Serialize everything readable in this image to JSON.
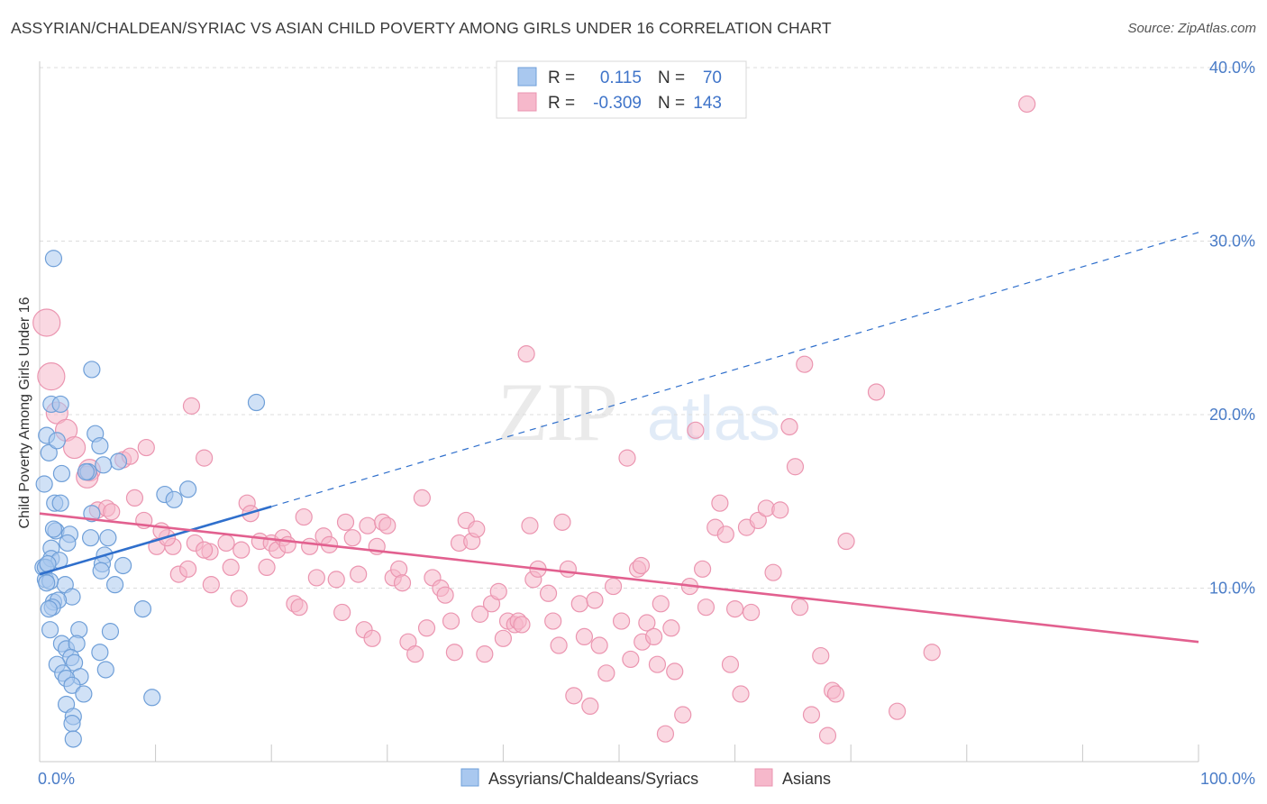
{
  "title": "ASSYRIAN/CHALDEAN/SYRIAC VS ASIAN CHILD POVERTY AMONG GIRLS UNDER 16 CORRELATION CHART",
  "source": "Source: ZipAtlas.com",
  "colors": {
    "blue_fill": "#a9c8ef",
    "blue_stroke": "#6f9fd8",
    "blue_line": "#2f6fcc",
    "pink_fill": "#f6b8cb",
    "pink_stroke": "#eb95b0",
    "pink_line": "#e2608f",
    "tick_text": "#4a7cc7",
    "grid": "#dcdcdc"
  },
  "chart_data": {
    "type": "scatter",
    "ylabel": "Child Poverty Among Girls Under 16",
    "xlim": [
      0,
      100
    ],
    "ylim": [
      0,
      40
    ],
    "x_ticks": [
      "0.0%",
      "100.0%"
    ],
    "y_ticks": [
      {
        "value": 10,
        "label": "10.0%"
      },
      {
        "value": 20,
        "label": "20.0%"
      },
      {
        "value": 30,
        "label": "30.0%"
      },
      {
        "value": 40,
        "label": "40.0%"
      }
    ],
    "grid": "horizontal dashed",
    "legend": {
      "position": "top-center",
      "rows": [
        {
          "r_label": "R =",
          "r_value": "0.115",
          "n_label": "N =",
          "n_value": "70"
        },
        {
          "r_label": "R =",
          "r_value": "-0.309",
          "n_label": "N =",
          "n_value": "143"
        }
      ]
    },
    "bottom_legend": [
      "Assyrians/Chaldeans/Syriacs",
      "Asians"
    ],
    "series": [
      {
        "name": "Assyrians/Chaldeans/Syriacs",
        "trend": {
          "x0": 0,
          "y0": 10.8,
          "x1": 20,
          "y1": 14.7,
          "dash_x1": 100,
          "dash_y1": 30.5
        },
        "points": [
          [
            0.3,
            11.2
          ],
          [
            0.5,
            10.5
          ],
          [
            0.4,
            16.0
          ],
          [
            0.6,
            18.8
          ],
          [
            0.8,
            17.8
          ],
          [
            1.2,
            29.0
          ],
          [
            1.0,
            20.6
          ],
          [
            1.8,
            20.6
          ],
          [
            4.5,
            22.6
          ],
          [
            18.7,
            20.7
          ],
          [
            4.8,
            18.9
          ],
          [
            1.5,
            18.5
          ],
          [
            5.2,
            18.2
          ],
          [
            6.8,
            17.3
          ],
          [
            4.2,
            16.7
          ],
          [
            1.9,
            16.6
          ],
          [
            5.5,
            17.1
          ],
          [
            10.8,
            15.4
          ],
          [
            11.6,
            15.1
          ],
          [
            12.8,
            15.7
          ],
          [
            1.3,
            14.9
          ],
          [
            1.8,
            14.9
          ],
          [
            4.5,
            14.3
          ],
          [
            1.4,
            13.3
          ],
          [
            1.2,
            13.4
          ],
          [
            2.6,
            13.1
          ],
          [
            4.4,
            12.9
          ],
          [
            2.4,
            12.6
          ],
          [
            1.0,
            12.3
          ],
          [
            5.9,
            12.9
          ],
          [
            5.6,
            11.9
          ],
          [
            1.0,
            11.7
          ],
          [
            1.7,
            11.6
          ],
          [
            0.5,
            11.2
          ],
          [
            0.7,
            11.4
          ],
          [
            5.4,
            11.4
          ],
          [
            7.2,
            11.3
          ],
          [
            5.3,
            11.0
          ],
          [
            2.2,
            10.2
          ],
          [
            0.9,
            10.4
          ],
          [
            6.5,
            10.2
          ],
          [
            0.6,
            10.3
          ],
          [
            2.8,
            9.5
          ],
          [
            1.2,
            9.2
          ],
          [
            1.6,
            9.3
          ],
          [
            1.1,
            8.9
          ],
          [
            0.8,
            8.8
          ],
          [
            8.9,
            8.8
          ],
          [
            0.9,
            7.6
          ],
          [
            3.4,
            7.6
          ],
          [
            6.1,
            7.5
          ],
          [
            1.9,
            6.8
          ],
          [
            2.3,
            6.5
          ],
          [
            3.2,
            6.8
          ],
          [
            2.7,
            6.0
          ],
          [
            5.2,
            6.3
          ],
          [
            1.5,
            5.6
          ],
          [
            3.0,
            5.7
          ],
          [
            2.0,
            5.1
          ],
          [
            3.5,
            4.9
          ],
          [
            5.7,
            5.3
          ],
          [
            2.3,
            4.8
          ],
          [
            2.8,
            4.4
          ],
          [
            3.8,
            3.9
          ],
          [
            9.7,
            3.7
          ],
          [
            2.3,
            3.3
          ],
          [
            2.9,
            2.6
          ],
          [
            2.8,
            2.2
          ],
          [
            2.9,
            1.3
          ],
          [
            4.0,
            16.7
          ]
        ]
      },
      {
        "name": "Asians",
        "trend": {
          "x0": 0,
          "y0": 14.3,
          "x1": 100,
          "y1": 6.9
        },
        "points": [
          [
            0.6,
            25.3
          ],
          [
            1.0,
            22.2
          ],
          [
            1.5,
            20.1
          ],
          [
            2.3,
            19.1
          ],
          [
            4.3,
            16.8
          ],
          [
            4.1,
            16.4
          ],
          [
            3.0,
            18.1
          ],
          [
            7.2,
            17.4
          ],
          [
            7.8,
            17.6
          ],
          [
            9.2,
            18.1
          ],
          [
            14.2,
            17.5
          ],
          [
            14.7,
            12.1
          ],
          [
            13.1,
            20.5
          ],
          [
            11.5,
            12.4
          ],
          [
            5.0,
            14.5
          ],
          [
            5.8,
            14.6
          ],
          [
            6.2,
            14.4
          ],
          [
            8.2,
            15.2
          ],
          [
            9.0,
            13.9
          ],
          [
            10.1,
            12.4
          ],
          [
            11.0,
            12.9
          ],
          [
            10.5,
            13.3
          ],
          [
            12.0,
            10.8
          ],
          [
            12.8,
            11.1
          ],
          [
            13.4,
            12.6
          ],
          [
            14.2,
            12.2
          ],
          [
            14.8,
            10.2
          ],
          [
            16.1,
            12.6
          ],
          [
            16.5,
            11.2
          ],
          [
            17.2,
            9.4
          ],
          [
            17.4,
            12.2
          ],
          [
            17.9,
            14.9
          ],
          [
            18.2,
            14.3
          ],
          [
            19.0,
            12.7
          ],
          [
            19.6,
            11.2
          ],
          [
            20.0,
            12.6
          ],
          [
            20.5,
            12.2
          ],
          [
            21.0,
            12.9
          ],
          [
            21.4,
            12.5
          ],
          [
            22.0,
            9.1
          ],
          [
            22.4,
            8.9
          ],
          [
            22.8,
            14.1
          ],
          [
            23.3,
            12.4
          ],
          [
            23.9,
            10.6
          ],
          [
            24.5,
            13.0
          ],
          [
            25.0,
            12.5
          ],
          [
            25.6,
            10.5
          ],
          [
            26.1,
            8.6
          ],
          [
            26.4,
            13.8
          ],
          [
            27.0,
            12.9
          ],
          [
            27.5,
            10.8
          ],
          [
            28.0,
            7.6
          ],
          [
            28.3,
            13.6
          ],
          [
            28.7,
            7.1
          ],
          [
            29.1,
            12.4
          ],
          [
            29.6,
            13.8
          ],
          [
            30.0,
            13.6
          ],
          [
            30.5,
            10.6
          ],
          [
            31.0,
            11.1
          ],
          [
            31.3,
            10.3
          ],
          [
            31.8,
            6.9
          ],
          [
            32.4,
            6.2
          ],
          [
            33.0,
            15.2
          ],
          [
            33.4,
            7.7
          ],
          [
            33.9,
            10.6
          ],
          [
            34.6,
            10.0
          ],
          [
            35.0,
            9.6
          ],
          [
            35.5,
            8.1
          ],
          [
            35.8,
            6.3
          ],
          [
            36.2,
            12.6
          ],
          [
            36.8,
            13.9
          ],
          [
            37.3,
            12.7
          ],
          [
            37.7,
            13.4
          ],
          [
            38.0,
            8.5
          ],
          [
            38.4,
            6.2
          ],
          [
            39.0,
            9.1
          ],
          [
            39.6,
            9.8
          ],
          [
            40.0,
            7.1
          ],
          [
            40.4,
            8.1
          ],
          [
            41.0,
            7.9
          ],
          [
            41.3,
            8.1
          ],
          [
            41.6,
            7.9
          ],
          [
            42.0,
            23.5
          ],
          [
            42.3,
            13.6
          ],
          [
            42.6,
            10.5
          ],
          [
            43.0,
            11.1
          ],
          [
            43.9,
            9.7
          ],
          [
            44.3,
            8.1
          ],
          [
            44.8,
            6.7
          ],
          [
            45.1,
            13.8
          ],
          [
            45.6,
            11.1
          ],
          [
            46.1,
            3.8
          ],
          [
            46.6,
            9.1
          ],
          [
            47.0,
            7.2
          ],
          [
            47.5,
            3.2
          ],
          [
            47.9,
            9.3
          ],
          [
            48.3,
            6.7
          ],
          [
            48.9,
            5.1
          ],
          [
            49.5,
            10.1
          ],
          [
            50.2,
            8.1
          ],
          [
            50.7,
            17.5
          ],
          [
            51.0,
            5.9
          ],
          [
            51.6,
            11.1
          ],
          [
            52.0,
            6.9
          ],
          [
            52.4,
            8.0
          ],
          [
            53.0,
            7.2
          ],
          [
            53.3,
            5.6
          ],
          [
            53.6,
            9.1
          ],
          [
            54.0,
            1.6
          ],
          [
            54.5,
            7.7
          ],
          [
            54.8,
            5.2
          ],
          [
            55.5,
            2.7
          ],
          [
            56.1,
            10.1
          ],
          [
            56.6,
            19.1
          ],
          [
            57.2,
            11.1
          ],
          [
            57.5,
            8.9
          ],
          [
            58.3,
            13.5
          ],
          [
            58.7,
            14.9
          ],
          [
            59.2,
            13.1
          ],
          [
            59.6,
            5.6
          ],
          [
            60.0,
            8.8
          ],
          [
            60.5,
            3.9
          ],
          [
            61.0,
            13.5
          ],
          [
            61.4,
            8.6
          ],
          [
            62.0,
            13.9
          ],
          [
            62.7,
            14.6
          ],
          [
            63.3,
            10.9
          ],
          [
            63.9,
            14.5
          ],
          [
            64.7,
            19.3
          ],
          [
            65.2,
            17.0
          ],
          [
            65.6,
            8.9
          ],
          [
            66.0,
            22.9
          ],
          [
            66.6,
            2.7
          ],
          [
            67.4,
            6.1
          ],
          [
            68.0,
            1.5
          ],
          [
            68.4,
            4.1
          ],
          [
            68.7,
            3.9
          ],
          [
            69.6,
            12.7
          ],
          [
            72.2,
            21.3
          ],
          [
            74.0,
            2.9
          ],
          [
            77.0,
            6.3
          ],
          [
            85.2,
            37.9
          ],
          [
            51.9,
            11.3
          ]
        ]
      }
    ]
  }
}
